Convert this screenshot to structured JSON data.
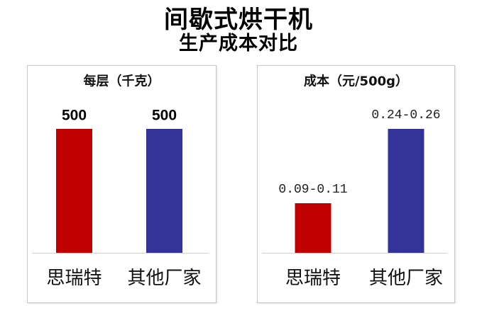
{
  "header": {
    "title": "间歇式烘干机",
    "subtitle": "生产成本对比"
  },
  "chart_data": [
    {
      "type": "bar",
      "title": "每层（千克）",
      "categories": [
        "思瑞特",
        "其他厂家"
      ],
      "values": [
        500,
        500
      ],
      "data_labels": [
        "500",
        "500"
      ],
      "colors": [
        "#c00000",
        "#333399"
      ],
      "grid": false,
      "legend": false
    },
    {
      "type": "bar",
      "title": "成本（元/500g）",
      "categories": [
        "思瑞特",
        "其他厂家"
      ],
      "values": [
        [
          0.09,
          0.11
        ],
        [
          0.24,
          0.26
        ]
      ],
      "data_labels": [
        "0.09-0.11",
        "0.24-0.26"
      ],
      "colors": [
        "#c00000",
        "#333399"
      ],
      "grid": false,
      "legend": false
    }
  ]
}
